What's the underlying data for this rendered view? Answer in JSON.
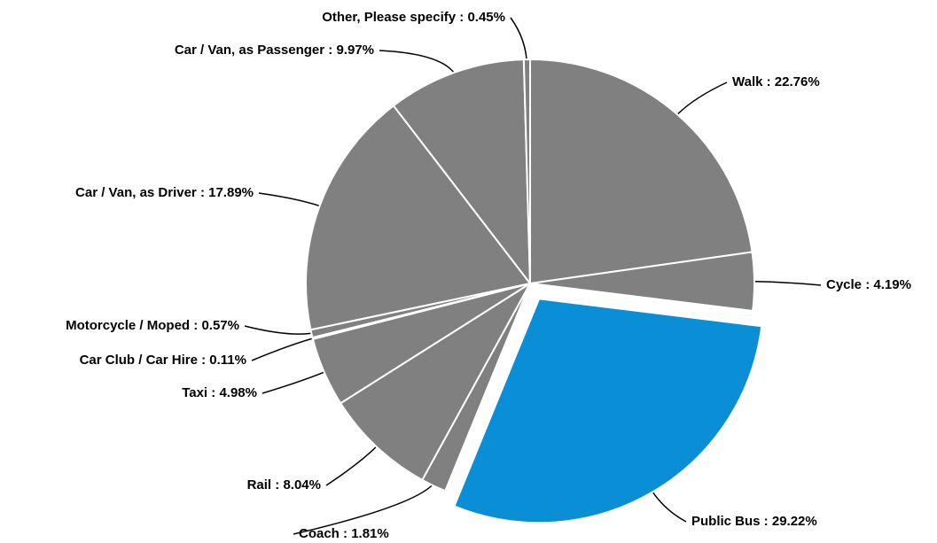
{
  "chart_data": {
    "type": "pie",
    "categories": [
      "Walk",
      "Cycle",
      "Public Bus",
      "Coach",
      "Rail",
      "Taxi",
      "Car Club / Car Hire",
      "Motorcycle / Moped",
      "Car / Van, as Driver",
      "Car / Van, as Passenger",
      "Other, Please specify"
    ],
    "values": [
      22.76,
      4.19,
      29.22,
      1.81,
      8.04,
      4.98,
      0.11,
      0.57,
      17.89,
      9.97,
      0.45
    ],
    "value_labels": [
      "22.76%",
      "4.19%",
      "29.22%",
      "1.81%",
      "8.04%",
      "4.98%",
      "0.11%",
      "0.57%",
      "17.89%",
      "9.97%",
      "0.45%"
    ],
    "label_separator": " : ",
    "color": "#808080",
    "highlight": {
      "index": 2,
      "color": "#0a8fd6"
    }
  }
}
